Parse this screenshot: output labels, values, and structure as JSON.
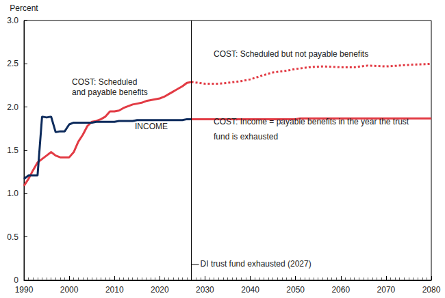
{
  "chart_data": {
    "type": "line",
    "y_label": "Percent",
    "xlim": [
      1990,
      2080
    ],
    "xticks": [
      1990,
      2000,
      2010,
      2020,
      2030,
      2040,
      2050,
      2060,
      2070,
      2080
    ],
    "ylim": [
      0,
      3
    ],
    "yticks": [
      0,
      0.5,
      {
        "value": 1,
        "label": "1.0"
      },
      1.5,
      {
        "value": 2,
        "label": "2.0"
      },
      2.5,
      {
        "value": 3,
        "label": "3.0"
      }
    ],
    "grid": false,
    "series": [
      {
        "name": "COST: Scheduled\nand payable benefits",
        "color": "#e23b44",
        "line_style": "solid",
        "x": [
          1990,
          1991,
          1992,
          1993,
          1994,
          1995,
          1996,
          1997,
          1998,
          1999,
          2000,
          2001,
          2002,
          2003,
          2004,
          2005,
          2006,
          2007,
          2008,
          2009,
          2010,
          2011,
          2012,
          2013,
          2014,
          2015,
          2016,
          2017,
          2018,
          2019,
          2020,
          2021,
          2022,
          2023,
          2024,
          2025,
          2026,
          2027
        ],
        "values": [
          1.09,
          1.17,
          1.27,
          1.36,
          1.4,
          1.44,
          1.48,
          1.44,
          1.42,
          1.42,
          1.42,
          1.48,
          1.6,
          1.68,
          1.78,
          1.83,
          1.84,
          1.86,
          1.89,
          1.95,
          1.95,
          1.96,
          1.99,
          2.01,
          2.03,
          2.04,
          2.05,
          2.07,
          2.08,
          2.09,
          2.1,
          2.12,
          2.15,
          2.18,
          2.21,
          2.24,
          2.28,
          2.29
        ]
      },
      {
        "name": "INCOME",
        "color": "#0d2b5c",
        "line_style": "solid",
        "x": [
          1990,
          1991,
          1992,
          1993,
          1994,
          1995,
          1996,
          1997,
          1998,
          1999,
          2000,
          2001,
          2002,
          2003,
          2004,
          2005,
          2006,
          2007,
          2008,
          2009,
          2010,
          2011,
          2012,
          2013,
          2014,
          2015,
          2016,
          2017,
          2018,
          2019,
          2020,
          2021,
          2022,
          2023,
          2024,
          2025,
          2026,
          2027
        ],
        "values": [
          1.17,
          1.21,
          1.21,
          1.21,
          1.89,
          1.88,
          1.89,
          1.71,
          1.72,
          1.72,
          1.8,
          1.82,
          1.82,
          1.82,
          1.82,
          1.82,
          1.83,
          1.83,
          1.83,
          1.83,
          1.83,
          1.84,
          1.84,
          1.84,
          1.84,
          1.85,
          1.85,
          1.85,
          1.85,
          1.85,
          1.85,
          1.85,
          1.85,
          1.85,
          1.85,
          1.85,
          1.86,
          1.86
        ]
      },
      {
        "name": "COST: Scheduled but not payable benefits",
        "color": "#e23b44",
        "line_style": "dotted",
        "x": [
          2027,
          2030,
          2033,
          2035,
          2038,
          2040,
          2043,
          2045,
          2048,
          2050,
          2053,
          2056,
          2060,
          2063,
          2066,
          2070,
          2073,
          2076,
          2080
        ],
        "values": [
          2.29,
          2.27,
          2.27,
          2.28,
          2.3,
          2.32,
          2.37,
          2.4,
          2.42,
          2.44,
          2.46,
          2.47,
          2.46,
          2.46,
          2.48,
          2.47,
          2.48,
          2.49,
          2.5
        ]
      },
      {
        "name": "COST: Income = payable benefits in the year the trust\nfund is exhausted",
        "color": "#e23b44",
        "line_style": "solid",
        "x": [
          2027,
          2035,
          2045,
          2050,
          2051,
          2060,
          2070,
          2080
        ],
        "values": [
          1.86,
          1.86,
          1.86,
          1.86,
          1.87,
          1.87,
          1.87,
          1.87
        ]
      }
    ],
    "events": [
      {
        "x": 2027,
        "label": "DI trust fund exhausted (2027)"
      }
    ]
  }
}
